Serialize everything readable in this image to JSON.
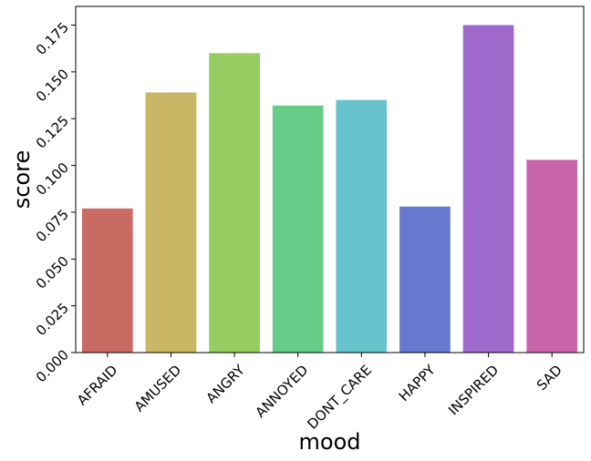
{
  "chart_data": {
    "type": "bar",
    "title": "",
    "xlabel": "mood",
    "ylabel": "score",
    "categories": [
      "AFRAID",
      "AMUSED",
      "ANGRY",
      "ANNOYED",
      "DONT_CARE",
      "HAPPY",
      "INSPIRED",
      "SAD"
    ],
    "values": [
      0.077,
      0.139,
      0.16,
      0.132,
      0.135,
      0.078,
      0.175,
      0.103
    ],
    "colors": [
      "#c96b63",
      "#c9b765",
      "#95cd63",
      "#66cc87",
      "#67c4cc",
      "#6679ce",
      "#9f69cc",
      "#c966ab"
    ],
    "ylim": [
      0,
      0.185
    ],
    "yticks": [
      "0.000",
      "0.025",
      "0.050",
      "0.075",
      "0.100",
      "0.125",
      "0.150",
      "0.175"
    ],
    "ytick_values": [
      0,
      0.025,
      0.05,
      0.075,
      0.1,
      0.125,
      0.15,
      0.175
    ],
    "grid": false,
    "legend": "none"
  }
}
